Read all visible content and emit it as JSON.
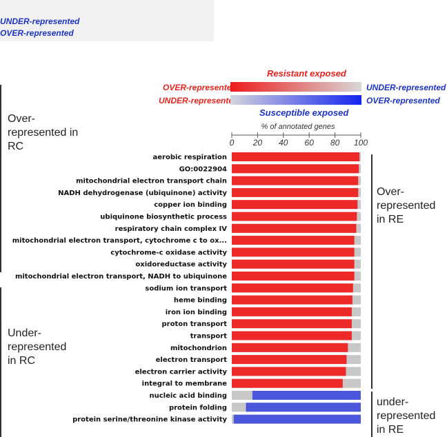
{
  "top_legend": {
    "line1": "UNDER-represented",
    "line2": "OVER-represented"
  },
  "side_labels": {
    "over_rc": "Over-\nrepresented in\nRC",
    "under_rc": "Under-\nrepresented\nin RC",
    "over_re": "Over-\nrepresented\nin RE",
    "under_re": "under-\nrepresented\nin RE"
  },
  "legend": {
    "resistant_title": "Resistant exposed",
    "susceptible_title": "Susceptible exposed",
    "red_left": "OVER-represented",
    "red_right": "UNDER-represented",
    "blue_left": "UNDER-represented",
    "blue_right": "OVER-represented"
  },
  "colors": {
    "red": "#ee2a28",
    "blue": "#4a57dc",
    "gray": "#c8c8c8"
  },
  "chart_data": {
    "type": "bar",
    "orientation": "horizontal",
    "stacked": true,
    "xlabel": "% of annotated genes",
    "xlim": [
      0,
      100
    ],
    "xticks": [
      0,
      20,
      40,
      60,
      80,
      100
    ],
    "categories": [
      "aerobic respiration",
      "GO:0022904",
      "mitochondrial electron transport chain",
      "NADH dehydrogenase (ubiquinone) activity",
      "copper ion binding",
      "ubiquinone biosynthetic process",
      "respiratory chain complex IV",
      "mitochondrial electron transport, cytochrome c to ox...",
      "cytochrome-c oxidase activity",
      "oxidoreductase activity",
      "mitochondrial electron transport, NADH to ubiquinone",
      "sodium ion transport",
      "heme binding",
      "iron ion binding",
      "proton transport",
      "transport",
      "mitochondrion",
      "electron transport",
      "electron carrier activity",
      "integral to membrane",
      "nucleic acid binding",
      "protein folding",
      "protein serine/threonine kinase activity"
    ],
    "series": [
      {
        "name": "Resistant exposed",
        "color": "#ee2a28",
        "values": [
          99,
          98.5,
          98,
          98,
          97.5,
          97,
          96.5,
          95,
          95,
          95,
          95,
          94,
          93.5,
          93,
          93,
          93,
          90,
          89,
          88.5,
          86,
          0,
          0,
          0
        ]
      },
      {
        "name": "Susceptible exposed",
        "color": "#4a57dc",
        "values": [
          0,
          0,
          0,
          0,
          0,
          0,
          0,
          0,
          0,
          0,
          0,
          0,
          0,
          0,
          0,
          0,
          0,
          0,
          0,
          0,
          84,
          89,
          98.5
        ]
      }
    ],
    "legend_position": "top"
  }
}
